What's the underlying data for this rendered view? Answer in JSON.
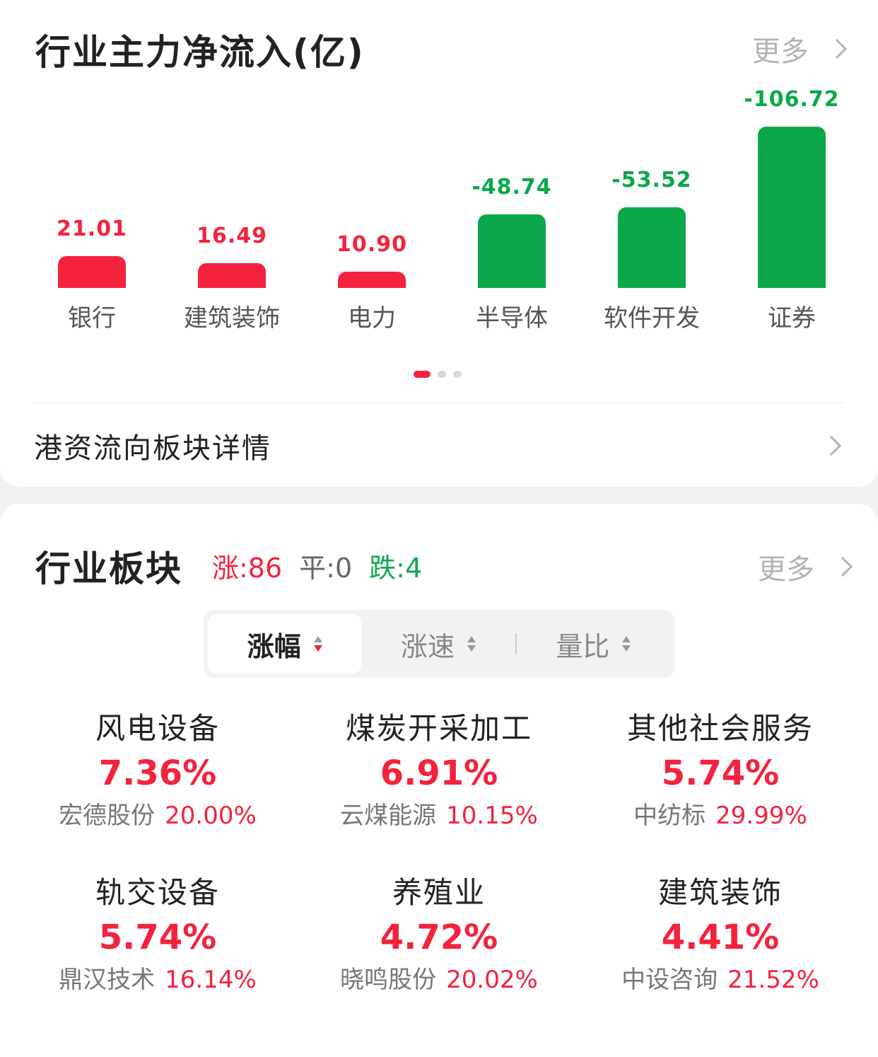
{
  "flow_card": {
    "title": "行业主力净流入(亿)",
    "more_label": "更多",
    "link_label": "港资流向板块详情",
    "page_indicator": {
      "total": 3,
      "active": 0
    }
  },
  "chart_data": {
    "type": "bar",
    "categories": [
      "银行",
      "建筑装饰",
      "电力",
      "半导体",
      "软件开发",
      "证券"
    ],
    "values": [
      21.01,
      16.49,
      10.9,
      -48.74,
      -53.52,
      -106.72
    ],
    "value_labels": [
      "21.01",
      "16.49",
      "10.90",
      "-48.74",
      "-53.52",
      "-106.72"
    ],
    "colors": {
      "positive": "#f5223d",
      "negative": "#0aa84a"
    }
  },
  "sector_card": {
    "title": "行业板块",
    "up_label": "涨:86",
    "flat_label": "平:0",
    "down_label": "跌:4",
    "more_label": "更多",
    "tabs": [
      {
        "label": "涨幅"
      },
      {
        "label": "涨速"
      },
      {
        "label": "量比"
      }
    ],
    "items": [
      {
        "name": "风电设备",
        "pct": "7.36%",
        "leader": "宏德股份",
        "leader_pct": "20.00%"
      },
      {
        "name": "煤炭开采加工",
        "pct": "6.91%",
        "leader": "云煤能源",
        "leader_pct": "10.15%"
      },
      {
        "name": "其他社会服务",
        "pct": "5.74%",
        "leader": "中纺标",
        "leader_pct": "29.99%"
      },
      {
        "name": "轨交设备",
        "pct": "5.74%",
        "leader": "鼎汉技术",
        "leader_pct": "16.14%"
      },
      {
        "name": "养殖业",
        "pct": "4.72%",
        "leader": "晓鸣股份",
        "leader_pct": "20.02%"
      },
      {
        "name": "建筑装饰",
        "pct": "4.41%",
        "leader": "中设咨询",
        "leader_pct": "21.52%"
      }
    ]
  }
}
